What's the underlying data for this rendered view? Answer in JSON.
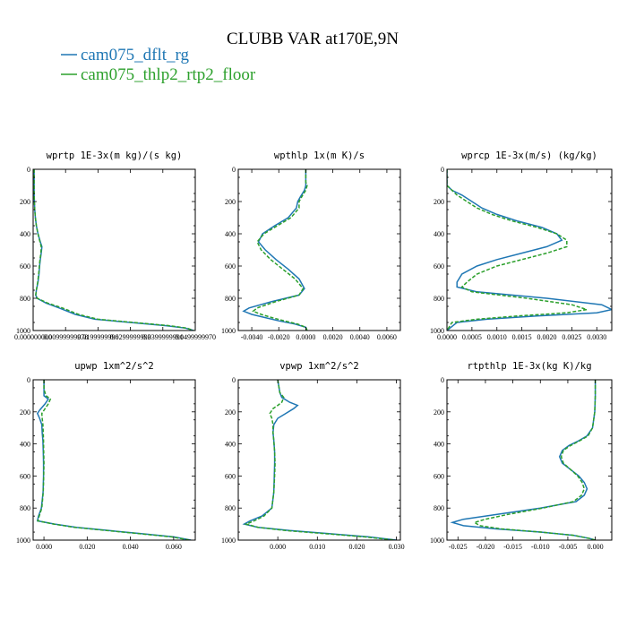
{
  "figure": {
    "title": "CLUBB VAR at170E,9N",
    "legend": [
      {
        "label": "cam075_dflt_rg",
        "color": "#1f77b4",
        "dash": "solid"
      },
      {
        "label": "cam075_thlp2_rtp2_floor",
        "color": "#2ca02c",
        "dash": "dashed"
      }
    ]
  },
  "chart_data": [
    {
      "type": "line",
      "title": "wprtp  1E-3x(m kg)/(s kg)",
      "xlim": [
        0.0,
        0.05
      ],
      "ylim": [
        1000,
        0
      ],
      "yticks": [
        "0",
        "200",
        "400",
        "600",
        "800",
        "1000"
      ],
      "xticks": [
        {
          "v": 0.0,
          "label": "0.000000000"
        },
        {
          "v": 0.01,
          "label": "0.00999999978"
        },
        {
          "v": 0.02,
          "label": "0.0199999996"
        },
        {
          "v": 0.03,
          "label": "0.0299999993"
        },
        {
          "v": 0.04,
          "label": "0.0399999991"
        },
        {
          "v": 0.05,
          "label": "0.0499999970"
        }
      ],
      "series": [
        {
          "y": [
            0,
            50,
            100,
            150,
            200,
            250,
            300,
            350,
            400,
            450,
            480,
            520,
            560,
            600,
            650,
            700,
            750,
            780,
            800,
            830,
            860,
            900,
            930,
            950,
            970,
            985,
            1000
          ],
          "x": [
            0.0003,
            0.0003,
            0.0003,
            0.0003,
            0.0004,
            0.0005,
            0.0007,
            0.001,
            0.0015,
            0.0022,
            0.0027,
            0.0025,
            0.0022,
            0.002,
            0.0018,
            0.0015,
            0.001,
            0.0008,
            0.0012,
            0.004,
            0.008,
            0.013,
            0.019,
            0.03,
            0.041,
            0.047,
            0.0495
          ]
        },
        {
          "y": [
            0,
            50,
            100,
            150,
            200,
            250,
            300,
            350,
            400,
            450,
            480,
            520,
            560,
            600,
            650,
            700,
            750,
            780,
            800,
            830,
            860,
            900,
            930,
            950,
            970,
            985,
            1000
          ],
          "x": [
            0.0003,
            0.0003,
            0.0003,
            0.0003,
            0.0004,
            0.0005,
            0.0007,
            0.001,
            0.0015,
            0.0021,
            0.0025,
            0.0024,
            0.0021,
            0.0019,
            0.0017,
            0.0014,
            0.001,
            0.0008,
            0.0013,
            0.0045,
            0.009,
            0.014,
            0.02,
            0.031,
            0.042,
            0.0475,
            0.0495
          ]
        }
      ]
    },
    {
      "type": "line",
      "title": "wpthlp  1x(m K)/s",
      "xlim": [
        -0.005,
        0.007
      ],
      "ylim": [
        1000,
        0
      ],
      "yticks": [
        "0",
        "200",
        "400",
        "600",
        "800",
        "1000"
      ],
      "xticks": [
        {
          "v": -0.004,
          "label": "-0.0040"
        },
        {
          "v": -0.002,
          "label": "-0.0020"
        },
        {
          "v": 0.0,
          "label": "0.0000"
        },
        {
          "v": 0.002,
          "label": "0.0020"
        },
        {
          "v": 0.004,
          "label": "0.0040"
        },
        {
          "v": 0.006,
          "label": "0.0060"
        }
      ],
      "series": [
        {
          "y": [
            0,
            80,
            100,
            130,
            170,
            200,
            240,
            300,
            350,
            400,
            450,
            500,
            560,
            620,
            680,
            740,
            780,
            820,
            860,
            880,
            900,
            920,
            940,
            960,
            980,
            1000
          ],
          "x": [
            0.0,
            0.0,
            0.0,
            -0.0001,
            -0.0004,
            -0.0006,
            -0.0007,
            -0.0013,
            -0.0023,
            -0.0032,
            -0.0035,
            -0.003,
            -0.0022,
            -0.0013,
            -0.0005,
            -0.0001,
            -0.0005,
            -0.0025,
            -0.0042,
            -0.0046,
            -0.004,
            -0.003,
            -0.002,
            -0.0008,
            0.0,
            0.0001
          ]
        },
        {
          "y": [
            0,
            80,
            100,
            130,
            170,
            200,
            240,
            300,
            350,
            400,
            450,
            500,
            560,
            620,
            680,
            740,
            780,
            820,
            860,
            880,
            900,
            920,
            940,
            960,
            980,
            1000
          ],
          "x": [
            0.0,
            0.0,
            0.0001,
            0.0,
            -0.0003,
            -0.0005,
            -0.0005,
            -0.0011,
            -0.0021,
            -0.0031,
            -0.0036,
            -0.0033,
            -0.0026,
            -0.0017,
            -0.0008,
            -0.0002,
            -0.0005,
            -0.0022,
            -0.0036,
            -0.0039,
            -0.0033,
            -0.0025,
            -0.0016,
            -0.0006,
            0.0,
            0.0001
          ]
        }
      ]
    },
    {
      "type": "line",
      "title": "wprcp  1E-3x(m/s) (kg/kg)",
      "xlim": [
        0.0,
        0.0033
      ],
      "ylim": [
        1000,
        0
      ],
      "yticks": [
        "0",
        "200",
        "400",
        "600",
        "800",
        "1000"
      ],
      "xticks": [
        {
          "v": 0.0,
          "label": "0.0000"
        },
        {
          "v": 0.0005,
          "label": "0.0005"
        },
        {
          "v": 0.001,
          "label": "0.0010"
        },
        {
          "v": 0.0015,
          "label": "0.0015"
        },
        {
          "v": 0.002,
          "label": "0.0020"
        },
        {
          "v": 0.0025,
          "label": "0.0025"
        },
        {
          "v": 0.003,
          "label": "0.0030"
        }
      ],
      "series": [
        {
          "y": [
            0,
            100,
            130,
            160,
            200,
            240,
            280,
            320,
            360,
            400,
            440,
            480,
            520,
            560,
            600,
            650,
            700,
            730,
            760,
            800,
            840,
            870,
            890,
            910,
            930,
            950,
            1000
          ],
          "x": [
            0.0,
            0.0,
            0.0001,
            0.0003,
            0.0005,
            0.0007,
            0.001,
            0.0014,
            0.0019,
            0.0022,
            0.0023,
            0.002,
            0.0015,
            0.001,
            0.0006,
            0.0003,
            0.0002,
            0.0002,
            0.0006,
            0.002,
            0.0031,
            0.0033,
            0.003,
            0.0018,
            0.0008,
            0.0002,
            0.0
          ]
        },
        {
          "y": [
            0,
            100,
            130,
            160,
            200,
            240,
            280,
            320,
            360,
            400,
            440,
            480,
            520,
            560,
            600,
            650,
            700,
            730,
            760,
            800,
            840,
            870,
            890,
            910,
            930,
            950,
            1000
          ],
          "x": [
            0.0,
            0.0,
            0.0001,
            0.0002,
            0.0004,
            0.0006,
            0.0009,
            0.0013,
            0.0018,
            0.0022,
            0.0024,
            0.0024,
            0.002,
            0.0015,
            0.001,
            0.0006,
            0.0004,
            0.0003,
            0.0005,
            0.0016,
            0.0025,
            0.0028,
            0.0024,
            0.0014,
            0.0006,
            0.0001,
            0.0
          ]
        }
      ]
    },
    {
      "type": "line",
      "title": "upwp  1xm^2/s^2",
      "xlim": [
        -0.005,
        0.07
      ],
      "ylim": [
        1000,
        0
      ],
      "yticks": [
        "0",
        "200",
        "400",
        "600",
        "800",
        "1000"
      ],
      "xticks": [
        {
          "v": 0.0,
          "label": "0.000"
        },
        {
          "v": 0.02,
          "label": "0.020"
        },
        {
          "v": 0.04,
          "label": "0.040"
        },
        {
          "v": 0.06,
          "label": "0.060"
        }
      ],
      "series": [
        {
          "y": [
            0,
            60,
            100,
            120,
            150,
            190,
            210,
            240,
            280,
            330,
            380,
            450,
            520,
            600,
            700,
            800,
            850,
            880,
            900,
            920,
            940,
            960,
            980,
            1000
          ],
          "x": [
            0.0,
            0.0,
            0.0,
            0.002,
            0.0005,
            -0.002,
            -0.003,
            -0.002,
            -0.001,
            -0.0008,
            -0.0005,
            -0.0003,
            -0.0002,
            -0.0002,
            -0.0004,
            -0.0012,
            -0.0025,
            -0.003,
            0.005,
            0.015,
            0.03,
            0.045,
            0.06,
            0.068
          ]
        },
        {
          "y": [
            0,
            60,
            100,
            120,
            150,
            190,
            210,
            240,
            280,
            330,
            380,
            450,
            520,
            600,
            700,
            800,
            850,
            880,
            900,
            920,
            940,
            960,
            980,
            1000
          ],
          "x": [
            0.0,
            0.0,
            0.001,
            0.003,
            0.002,
            0.0,
            -0.001,
            -0.0008,
            -0.0005,
            -0.0003,
            -0.0002,
            -0.0001,
            0.0,
            -0.0001,
            -0.0003,
            -0.001,
            -0.0022,
            -0.0028,
            0.0045,
            0.014,
            0.029,
            0.044,
            0.059,
            0.0675
          ]
        }
      ]
    },
    {
      "type": "line",
      "title": "vpwp  1xm^2/s^2",
      "xlim": [
        -0.01,
        0.031
      ],
      "ylim": [
        1000,
        0
      ],
      "yticks": [
        "0",
        "200",
        "400",
        "600",
        "800",
        "1000"
      ],
      "xticks": [
        {
          "v": 0.0,
          "label": "0.000"
        },
        {
          "v": 0.01,
          "label": "0.010"
        },
        {
          "v": 0.02,
          "label": "0.020"
        },
        {
          "v": 0.03,
          "label": "0.030"
        }
      ],
      "series": [
        {
          "y": [
            0,
            80,
            110,
            140,
            160,
            180,
            210,
            240,
            280,
            330,
            380,
            450,
            520,
            600,
            700,
            800,
            850,
            880,
            900,
            920,
            940,
            960,
            980,
            1000
          ],
          "x": [
            0.0,
            0.0005,
            0.001,
            0.003,
            0.005,
            0.004,
            0.002,
            0.0,
            -0.001,
            -0.0012,
            -0.001,
            -0.0008,
            -0.0008,
            -0.0009,
            -0.001,
            -0.0015,
            -0.004,
            -0.007,
            -0.0085,
            -0.005,
            0.003,
            0.013,
            0.023,
            0.03
          ]
        },
        {
          "y": [
            0,
            80,
            110,
            140,
            160,
            180,
            210,
            240,
            280,
            330,
            380,
            450,
            520,
            600,
            700,
            800,
            850,
            880,
            900,
            920,
            940,
            960,
            980,
            1000
          ],
          "x": [
            0.0,
            0.0005,
            0.0015,
            0.001,
            0.0,
            -0.0012,
            -0.002,
            -0.0015,
            -0.0012,
            -0.0012,
            -0.001,
            -0.0008,
            -0.0007,
            -0.0008,
            -0.001,
            -0.0015,
            -0.0035,
            -0.006,
            -0.008,
            -0.005,
            0.002,
            0.012,
            0.022,
            0.0295
          ]
        }
      ]
    },
    {
      "type": "line",
      "title": "rtpthlp  1E-3x(kg K)/kg",
      "xlim": [
        -0.027,
        0.003
      ],
      "ylim": [
        1000,
        0
      ],
      "yticks": [
        "0",
        "200",
        "400",
        "600",
        "800",
        "1000"
      ],
      "xticks": [
        {
          "v": -0.025,
          "label": "-0.025"
        },
        {
          "v": -0.02,
          "label": "-0.020"
        },
        {
          "v": -0.015,
          "label": "-0.015"
        },
        {
          "v": -0.01,
          "label": "-0.010"
        },
        {
          "v": -0.005,
          "label": "-0.005"
        },
        {
          "v": 0.0,
          "label": "0.000"
        }
      ],
      "series": [
        {
          "y": [
            0,
            100,
            200,
            300,
            350,
            380,
            410,
            440,
            480,
            520,
            560,
            600,
            640,
            680,
            720,
            760,
            800,
            840,
            870,
            890,
            910,
            930,
            950,
            970,
            990,
            1000
          ],
          "x": [
            0.0,
            0.0,
            -0.0001,
            -0.0005,
            -0.0015,
            -0.003,
            -0.0048,
            -0.006,
            -0.0065,
            -0.006,
            -0.0045,
            -0.003,
            -0.002,
            -0.0015,
            -0.002,
            -0.0035,
            -0.01,
            -0.018,
            -0.024,
            -0.026,
            -0.024,
            -0.018,
            -0.01,
            -0.004,
            -0.001,
            0.0
          ]
        },
        {
          "y": [
            0,
            100,
            200,
            300,
            350,
            380,
            410,
            440,
            480,
            520,
            560,
            600,
            640,
            680,
            720,
            760,
            800,
            840,
            870,
            890,
            910,
            930,
            950,
            970,
            990,
            1000
          ],
          "x": [
            0.0,
            0.0,
            -0.0001,
            -0.0005,
            -0.0013,
            -0.0028,
            -0.0045,
            -0.0058,
            -0.0062,
            -0.0058,
            -0.0045,
            -0.0032,
            -0.0024,
            -0.002,
            -0.0025,
            -0.004,
            -0.0095,
            -0.016,
            -0.02,
            -0.022,
            -0.021,
            -0.017,
            -0.01,
            -0.004,
            -0.001,
            0.0
          ]
        }
      ]
    }
  ]
}
